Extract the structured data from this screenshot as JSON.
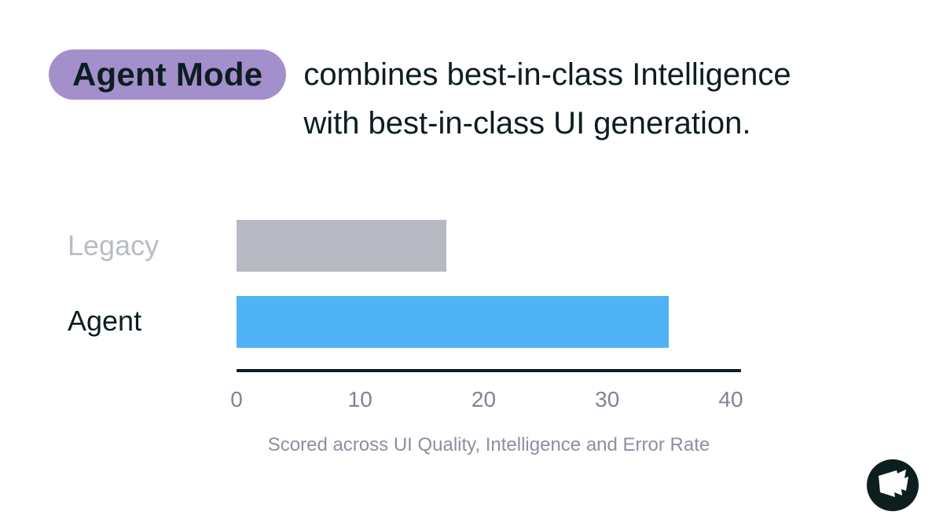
{
  "header": {
    "badge": "Agent Mode",
    "title_line1": "combines best-in-class Intelligence",
    "title_line2": "with best-in-class UI generation."
  },
  "chart_data": {
    "type": "bar",
    "orientation": "horizontal",
    "categories": [
      "Legacy",
      "Agent"
    ],
    "values": [
      17,
      35
    ],
    "xlim": [
      0,
      40
    ],
    "xticks": [
      "0",
      "10",
      "20",
      "30",
      "40"
    ],
    "bar_colors": [
      "#b7b9c3",
      "#4fb3f5"
    ],
    "category_label_colors": [
      "#b9bcc8",
      "#0d1d21"
    ],
    "caption": "Scored across UI Quality, Intelligence and Error Rate",
    "grid": false,
    "legend_position": "none"
  },
  "colors": {
    "background": "#ffffff",
    "badge_bg": "#a48fcd",
    "badge_text": "#0d1d21",
    "title_text": "#0d1d21",
    "axis_line": "#0d1d21",
    "tick_label": "#7e8495",
    "caption_text": "#8b90a0",
    "logo_bg": "#0c1e1e",
    "logo_glyph": "#ffffff"
  },
  "logo": {
    "name": "flag-logo"
  }
}
